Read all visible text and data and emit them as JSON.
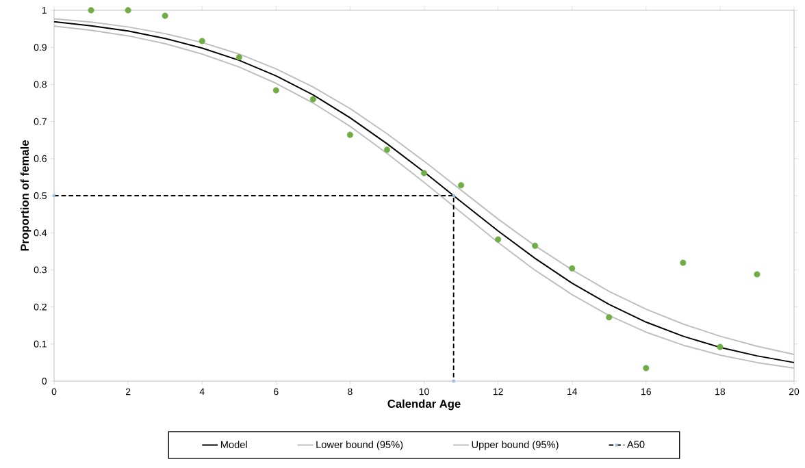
{
  "chart_data": {
    "type": "line",
    "xlabel": "Calendar Age",
    "ylabel": "Proportion of female",
    "x": [
      0,
      1,
      2,
      3,
      4,
      5,
      6,
      7,
      8,
      9,
      10,
      11,
      12,
      13,
      14,
      15,
      16,
      17,
      18,
      19,
      20
    ],
    "series": [
      {
        "name": "Model",
        "color": "#000000",
        "values": [
          0.969,
          0.958,
          0.944,
          0.924,
          0.898,
          0.865,
          0.823,
          0.772,
          0.71,
          0.64,
          0.564,
          0.484,
          0.405,
          0.331,
          0.264,
          0.207,
          0.159,
          0.121,
          0.091,
          0.068,
          0.05
        ]
      },
      {
        "name": "Lower bound (95%)",
        "color": "#bfbfbf",
        "values": [
          0.957,
          0.946,
          0.931,
          0.91,
          0.882,
          0.847,
          0.803,
          0.75,
          0.687,
          0.614,
          0.536,
          0.455,
          0.374,
          0.299,
          0.233,
          0.177,
          0.132,
          0.097,
          0.07,
          0.05,
          0.035
        ]
      },
      {
        "name": "Upper bound (95%)",
        "color": "#bfbfbf",
        "values": [
          0.977,
          0.968,
          0.955,
          0.937,
          0.913,
          0.882,
          0.842,
          0.793,
          0.735,
          0.667,
          0.593,
          0.515,
          0.437,
          0.365,
          0.3,
          0.242,
          0.194,
          0.154,
          0.121,
          0.094,
          0.072
        ]
      },
      {
        "name": "A50",
        "color": "#000000",
        "line_style": "dashed",
        "marker": "cross",
        "x": [
          0,
          10.8,
          10.8
        ],
        "values": [
          0.5,
          0.5,
          0
        ]
      },
      {
        "type": "scatter",
        "color": "#70ad47",
        "marker": "circle",
        "x": [
          1,
          2,
          3,
          4,
          5,
          6,
          7,
          8,
          9,
          10,
          11,
          12,
          13,
          14,
          15,
          16,
          17,
          18,
          19
        ],
        "values": [
          1.0,
          1.0,
          0.985,
          0.917,
          0.873,
          0.784,
          0.76,
          0.664,
          0.624,
          0.561,
          0.528,
          0.382,
          0.365,
          0.304,
          0.172,
          0.035,
          0.319,
          0.092,
          0.288
        ]
      }
    ],
    "xlim": [
      0,
      20
    ],
    "ylim": [
      0,
      1
    ],
    "xticks": [
      0,
      2,
      4,
      6,
      8,
      10,
      12,
      14,
      16,
      18,
      20
    ],
    "yticks": [
      0,
      0.1,
      0.2,
      0.3,
      0.4,
      0.5,
      0.6,
      0.7,
      0.8,
      0.9,
      1
    ],
    "legend": "bottom",
    "grid": false
  }
}
